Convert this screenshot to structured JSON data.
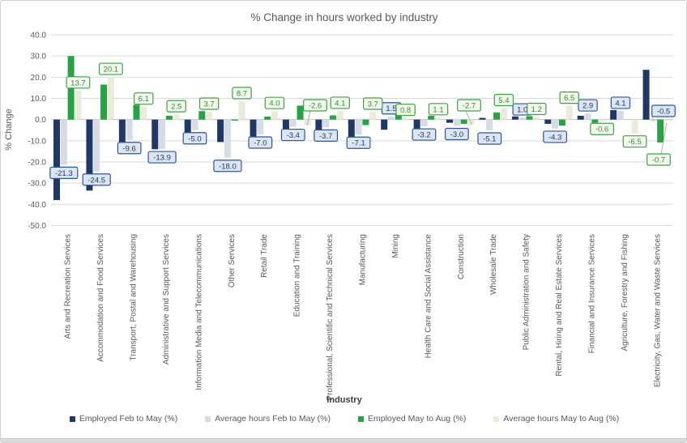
{
  "title": "% Change in hours worked by industry",
  "y_axis": {
    "title": "% Change",
    "max": 40,
    "min": -50,
    "step": 10,
    "tick_labels": [
      "40.0",
      "30.0",
      "20.0",
      "10.0",
      "0.0",
      "-10.0",
      "-20.0",
      "-30.0",
      "-40.0",
      "-50.0"
    ]
  },
  "x_axis": {
    "title": "Industry"
  },
  "legend": [
    {
      "label": "Employed Feb to May (%)",
      "color": "#1F3864"
    },
    {
      "label": "Average hours Feb to May (%)",
      "color": "#D6DCE5"
    },
    {
      "label": "Employed May to Aug (%)",
      "color": "#27A343"
    },
    {
      "label": "Average hours May to Aug (%)",
      "color": "#EBEBDC"
    }
  ],
  "colors": {
    "gridline": "#D9D9D9",
    "zero_axis": "#BFBFBF",
    "tick_text": "#595959",
    "category_text": "#595959",
    "callout_line": "#A6A6A6",
    "label_navy_fill": "#DCE6F2",
    "label_navy_border": "#2F5597",
    "label_navy_text": "#1F3864",
    "label_green_fill": "#F2F8EC",
    "label_green_border": "#3FA045",
    "label_green_text": "#2E8B3D"
  },
  "chart_data": {
    "type": "bar",
    "title": "% Change in hours worked by industry",
    "xlabel": "Industry",
    "ylabel": "% Change",
    "ylim": [
      -50,
      40
    ],
    "grid": true,
    "legend_position": "bottom",
    "categories": [
      "Arts and Recreation Services",
      "Accommodation and Food Services",
      "Transport, Postal and Warehousing",
      "Administrative and Support Services",
      "Information Media and Telecommunications",
      "Other Services",
      "Retail Trade",
      "Education and Training",
      "Professional, Scientific and Technical Services",
      "Manufacturing",
      "Mining",
      "Health Care and Social Assistance",
      "Construction",
      "Wholesale Trade",
      "Public Administration and Safety",
      "Rental, Hiring and Real Estate Services",
      "Financial and Insurance Services",
      "Agriculture, Forestry and Fishing",
      "Electricity, Gas, Water and Waste Services"
    ],
    "series": [
      {
        "name": "Employed Feb to May (%)",
        "color": "#1F3864",
        "labeled": false,
        "values": [
          -38.0,
          -33.5,
          -11.8,
          -14.0,
          -8.0,
          -10.6,
          -8.6,
          -6.1,
          -5.7,
          -9.3,
          -4.8,
          -5.8,
          -1.5,
          0.8,
          1.5,
          -2.0,
          1.8,
          4.5,
          23.5
        ]
      },
      {
        "name": "Average hours Feb to May (%)",
        "color": "#D6DCE5",
        "labeled": true,
        "label_style": "navy",
        "values": [
          -21.3,
          -24.5,
          -9.6,
          -13.9,
          -5.0,
          -18.0,
          -7.0,
          -3.4,
          -3.7,
          -7.1,
          1.5,
          -3.2,
          -3.0,
          -5.1,
          1.0,
          -4.3,
          2.9,
          4.1,
          -0.5
        ]
      },
      {
        "name": "Employed May to Aug (%)",
        "color": "#27A343",
        "labeled": false,
        "values": [
          30.0,
          16.5,
          7.0,
          1.8,
          4.0,
          -0.5,
          1.4,
          6.6,
          2.0,
          -2.6,
          2.4,
          1.8,
          -2.0,
          3.4,
          1.6,
          -2.8,
          -1.5,
          0.0,
          -10.8
        ]
      },
      {
        "name": "Average hours May to Aug (%)",
        "color": "#EBEBDC",
        "labeled": true,
        "label_style": "green",
        "values": [
          13.7,
          20.1,
          6.1,
          2.5,
          3.7,
          8.7,
          4.0,
          -2.6,
          4.1,
          3.7,
          0.8,
          1.1,
          -2.7,
          5.4,
          1.2,
          6.5,
          -0.6,
          -6.5,
          -0.7
        ]
      }
    ],
    "callouts": [
      {
        "series_index": 3,
        "category_index": 7,
        "note": "-2.6 label with leader line"
      },
      {
        "series_index": 3,
        "category_index": 12,
        "note": "-2.7 label with leader line"
      },
      {
        "series_index": 1,
        "category_index": 18,
        "note": "-0.5 label with leader line"
      },
      {
        "series_index": 3,
        "category_index": 18,
        "note": "-0.7 label with leader line"
      }
    ]
  }
}
